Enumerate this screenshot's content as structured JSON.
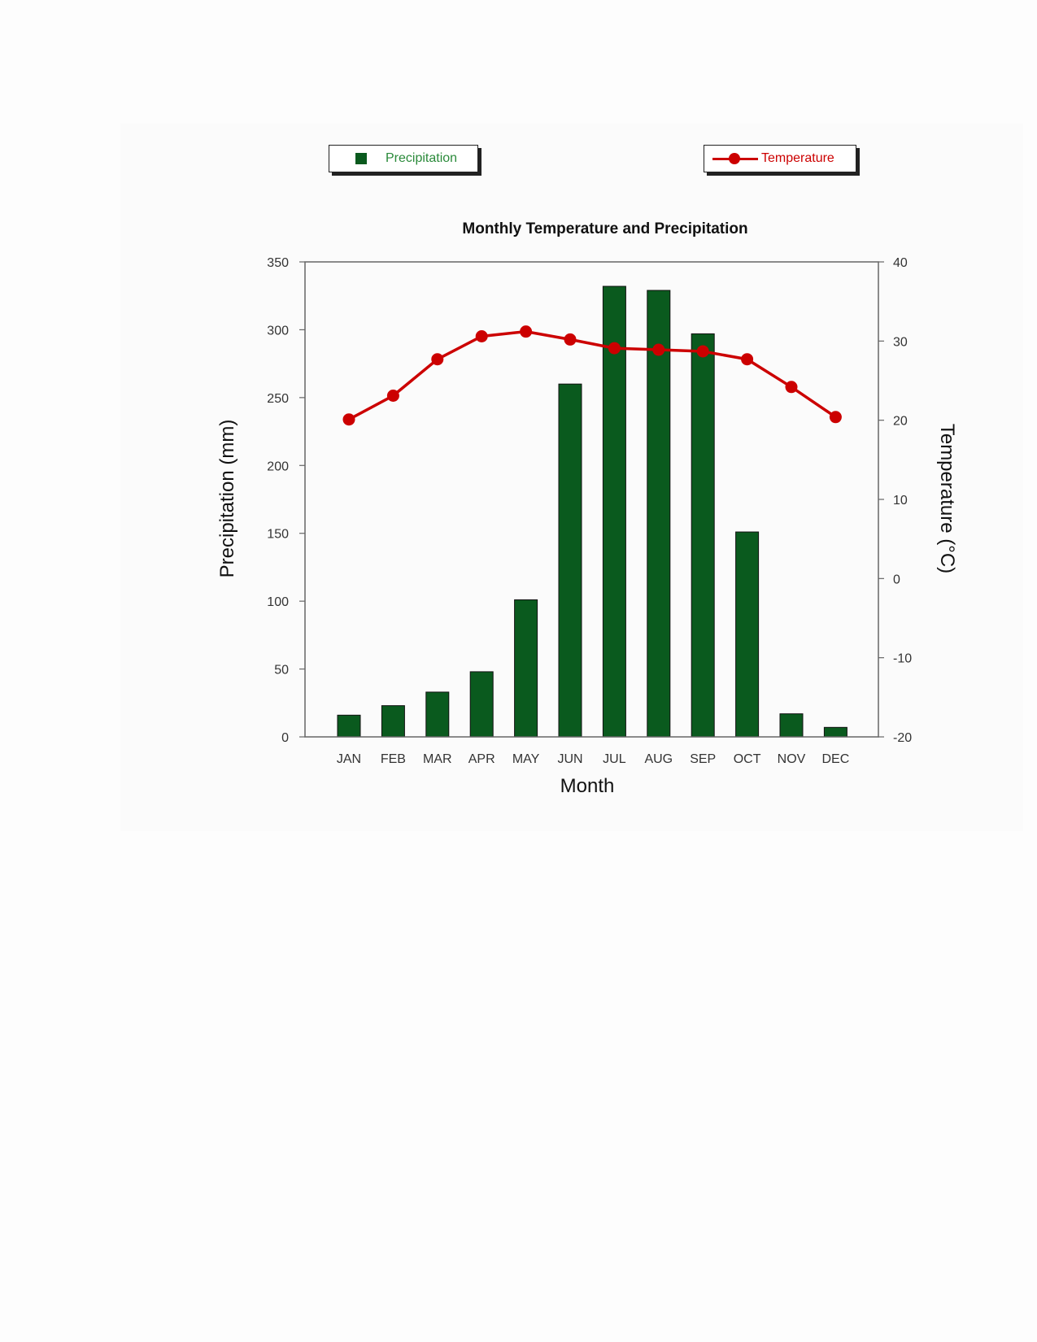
{
  "colors": {
    "precipitation": "#0a5a1e",
    "temperature": "#cc0000",
    "precip_legend_text": "#2a8a3a"
  },
  "legend": {
    "precipitation_label": "Precipitation",
    "temperature_label": "Temperature"
  },
  "chart_data": {
    "type": "bar",
    "title": "Monthly Temperature and Precipitation",
    "xlabel": "Month",
    "ylabel": "Precipitation (mm)",
    "y2label": "Temperature (°C)",
    "categories": [
      "JAN",
      "FEB",
      "MAR",
      "APR",
      "MAY",
      "JUN",
      "JUL",
      "AUG",
      "SEP",
      "OCT",
      "NOV",
      "DEC"
    ],
    "ylim": [
      0,
      350
    ],
    "yticks": [
      0,
      50,
      100,
      150,
      200,
      250,
      300,
      350
    ],
    "y2lim": [
      -20,
      40
    ],
    "y2ticks": [
      -20,
      -10,
      0,
      10,
      20,
      30,
      40
    ],
    "series": [
      {
        "name": "Precipitation",
        "type": "bar",
        "axis": "left",
        "values": [
          16,
          23,
          33,
          48,
          101,
          260,
          332,
          329,
          297,
          151,
          17,
          7
        ]
      },
      {
        "name": "Temperature",
        "type": "line",
        "axis": "right",
        "values": [
          20.1,
          23.1,
          27.7,
          30.6,
          31.2,
          30.2,
          29.1,
          28.9,
          28.7,
          27.7,
          24.2,
          20.4
        ]
      }
    ],
    "legend_position": "top",
    "grid": false
  }
}
